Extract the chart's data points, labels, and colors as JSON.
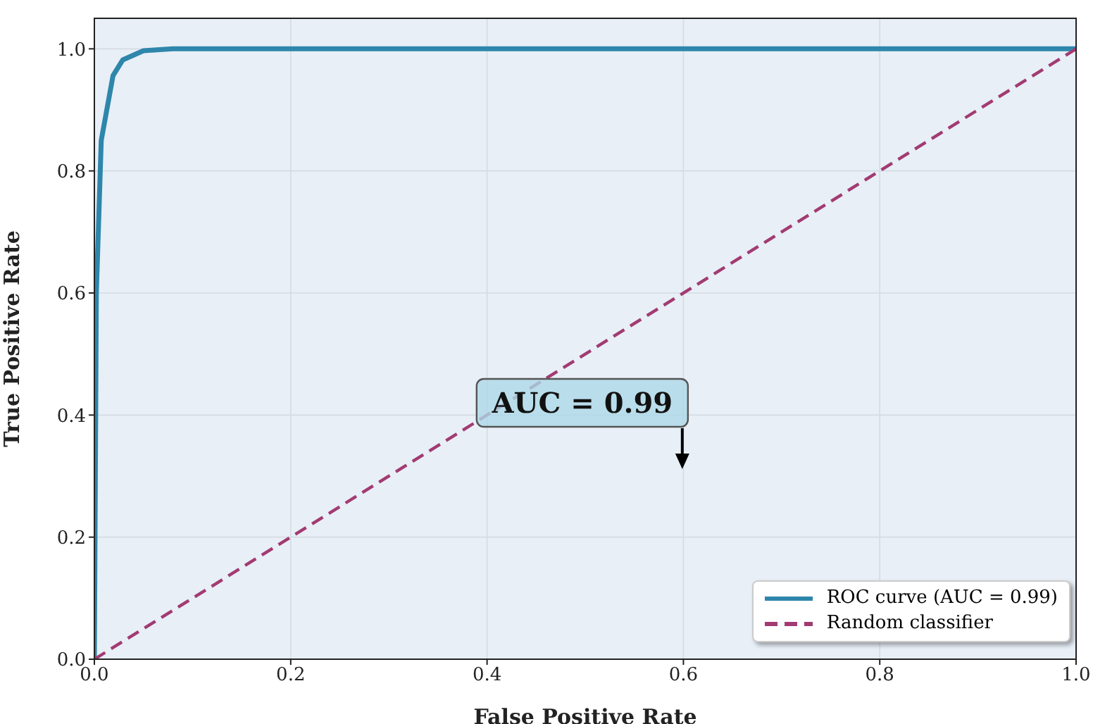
{
  "chart_data": {
    "type": "line",
    "xlabel": "False Positive Rate",
    "ylabel": "True Positive Rate",
    "xlim": [
      0,
      1
    ],
    "ylim": [
      0,
      1.05
    ],
    "xticks": [
      {
        "value": 0,
        "label": "0.0"
      },
      0.2,
      0.4,
      0.6,
      0.8,
      {
        "value": 1,
        "label": "1.0"
      }
    ],
    "yticks": [
      {
        "value": 0,
        "label": "0.0"
      },
      0.2,
      0.4,
      0.6,
      0.8,
      {
        "value": 1,
        "label": "1.0"
      }
    ],
    "grid": true,
    "legend": "bottom right",
    "marker": "none",
    "series": [
      {
        "name": "ROC curve (AUC = 0.99)",
        "color": "#2e86ab",
        "line_style": "solid",
        "x": [
          0,
          0.001,
          0.002,
          0.007,
          0.019,
          0.029,
          0.05,
          0.08,
          1
        ],
        "values": [
          0,
          0.3,
          0.6,
          0.85,
          0.956,
          0.982,
          0.997,
          1,
          1
        ]
      },
      {
        "name": "Random classifier",
        "color": "#a23b72",
        "line_style": "dashed",
        "x": [
          0,
          1
        ],
        "values": [
          0,
          1
        ]
      }
    ],
    "annotations": [
      "AUC = 0.99"
    ]
  }
}
